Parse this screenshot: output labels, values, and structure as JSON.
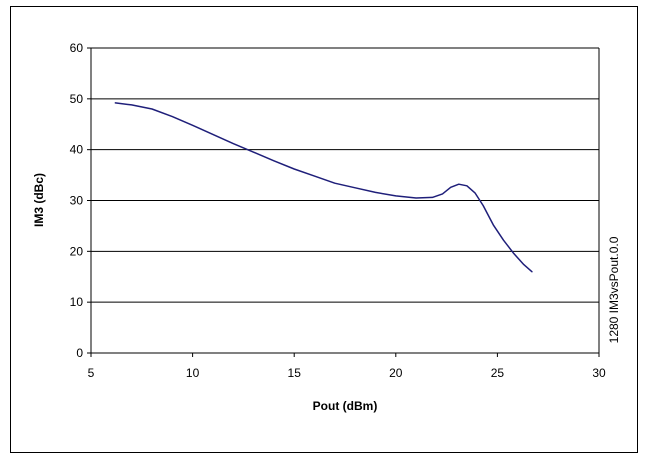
{
  "chart_data": {
    "type": "line",
    "title": "",
    "xlabel": "Pout (dBm)",
    "ylabel": "IM3 (dBc)",
    "xlim": [
      5,
      30
    ],
    "ylim": [
      0,
      60
    ],
    "x_ticks": [
      5,
      10,
      15,
      20,
      25,
      30
    ],
    "y_ticks": [
      0,
      10,
      20,
      30,
      40,
      50,
      60
    ],
    "grid": "horizontal",
    "legend": "none",
    "series": [
      {
        "color": "#1f1f7a",
        "points": [
          [
            6.2,
            49.2
          ],
          [
            7.0,
            48.8
          ],
          [
            8.0,
            48.0
          ],
          [
            9.0,
            46.5
          ],
          [
            10.0,
            44.8
          ],
          [
            11.0,
            43.0
          ],
          [
            12.0,
            41.2
          ],
          [
            13.0,
            39.5
          ],
          [
            14.0,
            37.8
          ],
          [
            15.0,
            36.2
          ],
          [
            16.0,
            34.8
          ],
          [
            17.0,
            33.4
          ],
          [
            18.0,
            32.5
          ],
          [
            19.0,
            31.6
          ],
          [
            20.0,
            30.9
          ],
          [
            21.0,
            30.5
          ],
          [
            21.8,
            30.6
          ],
          [
            22.3,
            31.3
          ],
          [
            22.7,
            32.6
          ],
          [
            23.1,
            33.2
          ],
          [
            23.5,
            32.9
          ],
          [
            23.9,
            31.5
          ],
          [
            24.3,
            29.0
          ],
          [
            24.8,
            25.2
          ],
          [
            25.3,
            22.2
          ],
          [
            25.8,
            19.6
          ],
          [
            26.3,
            17.4
          ],
          [
            26.7,
            16.0
          ]
        ]
      }
    ],
    "side_note": "1280 IM3vsPout.0.0"
  }
}
